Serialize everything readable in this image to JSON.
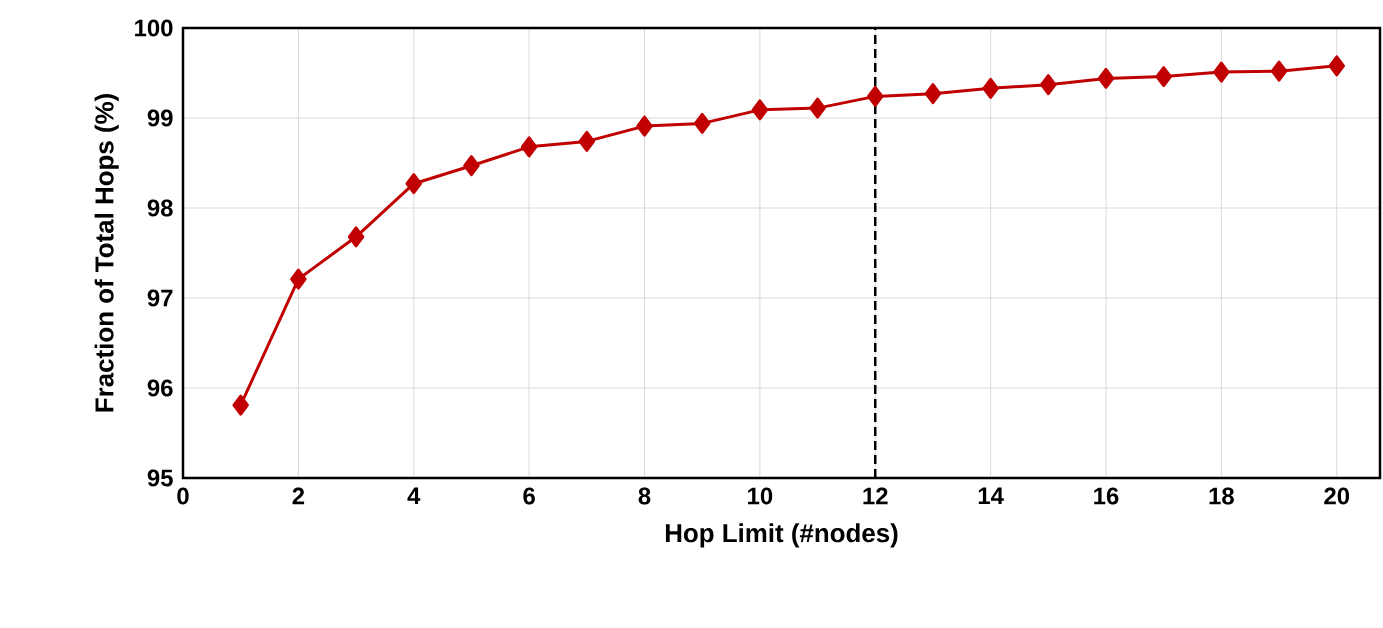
{
  "chart_data": {
    "type": "line",
    "xlabel": "Hop Limit (#nodes)",
    "ylabel": "Fraction of Total Hops  (%)",
    "x": [
      1,
      2,
      3,
      4,
      5,
      6,
      7,
      8,
      9,
      10,
      11,
      12,
      13,
      14,
      15,
      16,
      17,
      18,
      19,
      20
    ],
    "series": [
      {
        "color": "#c00000",
        "values": [
          95.81,
          97.21,
          97.68,
          98.27,
          98.47,
          98.68,
          98.74,
          98.91,
          98.94,
          99.09,
          99.11,
          99.24,
          99.27,
          99.33,
          99.37,
          99.44,
          99.46,
          99.51,
          99.52,
          99.58
        ]
      }
    ],
    "xlim": [
      0,
      20.75
    ],
    "ylim": [
      95,
      100
    ],
    "xticks": [
      0,
      2,
      4,
      6,
      8,
      10,
      12,
      14,
      16,
      18,
      20
    ],
    "yticks": [
      95,
      96,
      97,
      98,
      99,
      100
    ],
    "ref_lines": [
      {
        "axis": "x",
        "value": 12,
        "color": "#000000",
        "line_style": "dashed"
      }
    ],
    "grid": true,
    "marker": "diamond",
    "line_style": "solid"
  }
}
